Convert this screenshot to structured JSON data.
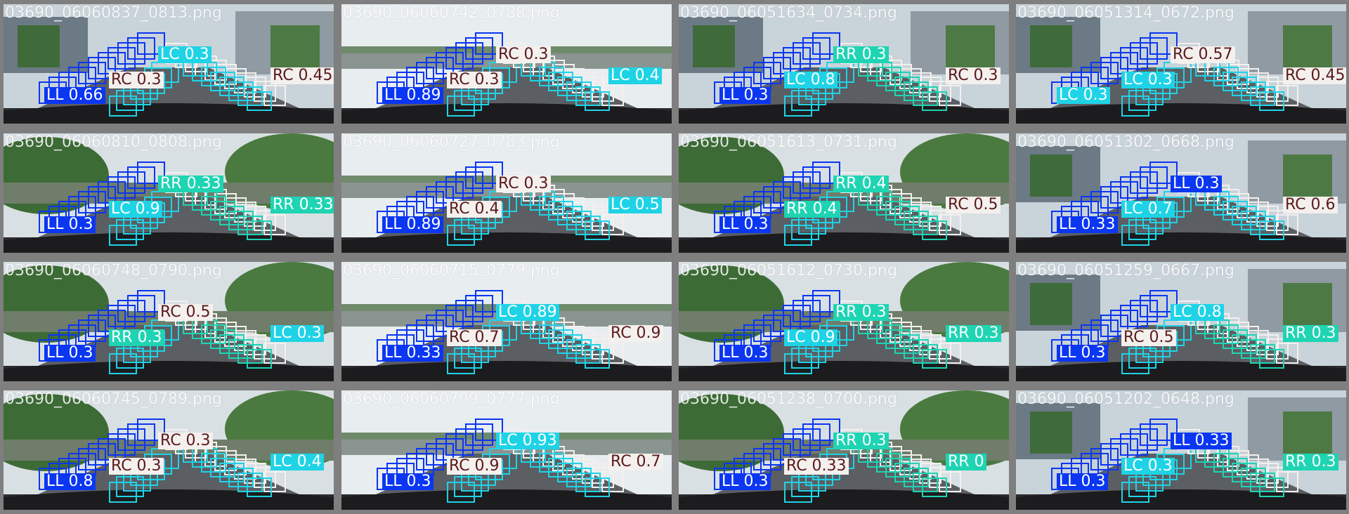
{
  "legend_colors": {
    "LL": "#0b36f2",
    "LC": "#1fd3e6",
    "RR": "#1ed4b3",
    "RC": "#f4f0ee"
  },
  "label_text_colors": {
    "LL": "#ffffff",
    "LC": "#ffffff",
    "RR": "#ffffff",
    "RC": "#5a1a1a"
  },
  "tiles": [
    {
      "filename": "03690_06060837_0813.png",
      "scene": "city",
      "labels": [
        {
          "cls": "LL",
          "text": "LL 0.66"
        },
        {
          "cls": "LC",
          "text": "LC 0.3"
        },
        {
          "cls": "RC",
          "text": "RC 0.3"
        },
        {
          "cls": "RC",
          "text": "RC 0.45"
        }
      ]
    },
    {
      "filename": "03690_06060742_0788.png",
      "scene": "highway",
      "labels": [
        {
          "cls": "LL",
          "text": "LL 0.89"
        },
        {
          "cls": "RC",
          "text": "RC 0.3"
        },
        {
          "cls": "RC",
          "text": "RC 0.3"
        },
        {
          "cls": "LC",
          "text": "LC 0.4"
        }
      ]
    },
    {
      "filename": "03690_06051634_0734.png",
      "scene": "city",
      "labels": [
        {
          "cls": "LL",
          "text": "LL 0.3"
        },
        {
          "cls": "RR",
          "text": "RR 0.3"
        },
        {
          "cls": "LC",
          "text": "LC 0.8"
        },
        {
          "cls": "RC",
          "text": "RC 0.3"
        }
      ]
    },
    {
      "filename": "03690_06051314_0672.png",
      "scene": "city",
      "labels": [
        {
          "cls": "LC",
          "text": "LC 0.3"
        },
        {
          "cls": "RC",
          "text": "RC 0.57"
        },
        {
          "cls": "LC",
          "text": "LC 0.3"
        },
        {
          "cls": "RC",
          "text": "RC 0.45"
        }
      ]
    },
    {
      "filename": "03690_06060810_0808.png",
      "scene": "trees",
      "labels": [
        {
          "cls": "LL",
          "text": "LL 0.3"
        },
        {
          "cls": "RR",
          "text": "RR 0.33"
        },
        {
          "cls": "LC",
          "text": "LC 0.9"
        },
        {
          "cls": "RR",
          "text": "RR 0.33"
        }
      ]
    },
    {
      "filename": "03690_06060727_0783.png",
      "scene": "highway",
      "labels": [
        {
          "cls": "LL",
          "text": "LL 0.89"
        },
        {
          "cls": "RC",
          "text": "RC 0.3"
        },
        {
          "cls": "RC",
          "text": "RC 0.4"
        },
        {
          "cls": "LC",
          "text": "LC 0.5"
        }
      ]
    },
    {
      "filename": "03690_06051613_0731.png",
      "scene": "trees",
      "labels": [
        {
          "cls": "LL",
          "text": "LL 0.3"
        },
        {
          "cls": "RR",
          "text": "RR 0.4"
        },
        {
          "cls": "RR",
          "text": "RR 0.4"
        },
        {
          "cls": "RC",
          "text": "RC 0.5"
        }
      ]
    },
    {
      "filename": "03690_06051302_0668.png",
      "scene": "city",
      "labels": [
        {
          "cls": "LL",
          "text": "LL 0.33"
        },
        {
          "cls": "LL",
          "text": "LL 0.3"
        },
        {
          "cls": "LC",
          "text": "LC 0.7"
        },
        {
          "cls": "RC",
          "text": "RC 0.6"
        }
      ]
    },
    {
      "filename": "03690_06060748_0790.png",
      "scene": "trees",
      "labels": [
        {
          "cls": "LL",
          "text": "LL 0.3"
        },
        {
          "cls": "RC",
          "text": "RC 0.5"
        },
        {
          "cls": "RR",
          "text": "RR 0.3"
        },
        {
          "cls": "LC",
          "text": "LC 0.3"
        }
      ]
    },
    {
      "filename": "03690_06060715_0779.png",
      "scene": "highway",
      "labels": [
        {
          "cls": "LL",
          "text": "LL 0.33"
        },
        {
          "cls": "LC",
          "text": "LC 0.89"
        },
        {
          "cls": "RC",
          "text": "RC 0.7"
        },
        {
          "cls": "RC",
          "text": "RC 0.9"
        }
      ]
    },
    {
      "filename": "03690_06051612_0730.png",
      "scene": "trees",
      "labels": [
        {
          "cls": "LL",
          "text": "LL 0.3"
        },
        {
          "cls": "RR",
          "text": "RR 0.3"
        },
        {
          "cls": "LC",
          "text": "LC 0.9"
        },
        {
          "cls": "RR",
          "text": "RR 0.3"
        }
      ]
    },
    {
      "filename": "03690_06051259_0667.png",
      "scene": "city",
      "labels": [
        {
          "cls": "LL",
          "text": "LL 0.3"
        },
        {
          "cls": "LC",
          "text": "LC 0.8"
        },
        {
          "cls": "RC",
          "text": "RC 0.5"
        },
        {
          "cls": "RR",
          "text": "RR 0.3"
        }
      ]
    },
    {
      "filename": "03690_06060745_0789.png",
      "scene": "trees",
      "labels": [
        {
          "cls": "LL",
          "text": "LL 0.8"
        },
        {
          "cls": "RC",
          "text": "RC 0.3"
        },
        {
          "cls": "RC",
          "text": "RC 0.3"
        },
        {
          "cls": "LC",
          "text": "LC 0.4"
        }
      ]
    },
    {
      "filename": "03690_06060709_0777.png",
      "scene": "highway",
      "labels": [
        {
          "cls": "LL",
          "text": "LL 0.3"
        },
        {
          "cls": "LC",
          "text": "LC 0.93"
        },
        {
          "cls": "RC",
          "text": "RC 0.9"
        },
        {
          "cls": "RC",
          "text": "RC 0.7"
        }
      ]
    },
    {
      "filename": "03690_06051238_0700.png",
      "scene": "trees",
      "labels": [
        {
          "cls": "LL",
          "text": "LL 0.3"
        },
        {
          "cls": "RR",
          "text": "RR 0.3"
        },
        {
          "cls": "RC",
          "text": "RC 0.33"
        },
        {
          "cls": "RR",
          "text": "RR 0"
        }
      ]
    },
    {
      "filename": "03690_06051202_0648.png",
      "scene": "city",
      "labels": [
        {
          "cls": "LL",
          "text": "LL 0.3"
        },
        {
          "cls": "LL",
          "text": "LL 0.33"
        },
        {
          "cls": "LC",
          "text": "LC 0.3"
        },
        {
          "cls": "RR",
          "text": "RR 0.3"
        }
      ]
    }
  ]
}
